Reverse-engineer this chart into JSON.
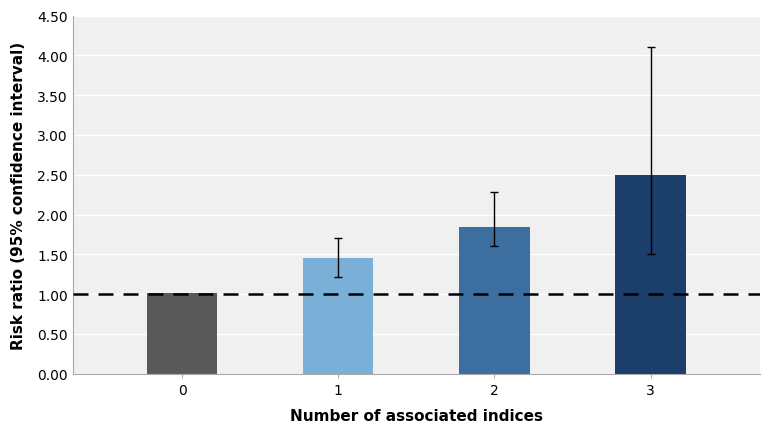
{
  "categories": [
    "0",
    "1",
    "2",
    "3"
  ],
  "values": [
    1.01,
    1.45,
    1.85,
    2.5
  ],
  "ci_lower": [
    1.01,
    1.22,
    1.6,
    1.5
  ],
  "ci_upper": [
    1.01,
    1.7,
    2.28,
    4.1
  ],
  "bar_colors": [
    "#595959",
    "#7ab0d8",
    "#3d6ea0",
    "#1c3e6a"
  ],
  "xlabel": "Number of associated indices",
  "ylabel": "Risk ratio (95% confidence interval)",
  "ylim": [
    0,
    4.5
  ],
  "yticks": [
    0.0,
    0.5,
    1.0,
    1.5,
    2.0,
    2.5,
    3.0,
    3.5,
    4.0,
    4.5
  ],
  "ytick_labels": [
    "0.00",
    "0.50",
    "1.00",
    "1.50",
    "2.00",
    "2.50",
    "3.00",
    "3.50",
    "4.00",
    "4.50"
  ],
  "reference_line_y": 1.0,
  "background_color": "#ffffff",
  "plot_bg_color": "#f0f0f0",
  "bar_width": 0.45,
  "xlabel_fontsize": 11,
  "ylabel_fontsize": 11,
  "tick_fontsize": 10,
  "title": ""
}
